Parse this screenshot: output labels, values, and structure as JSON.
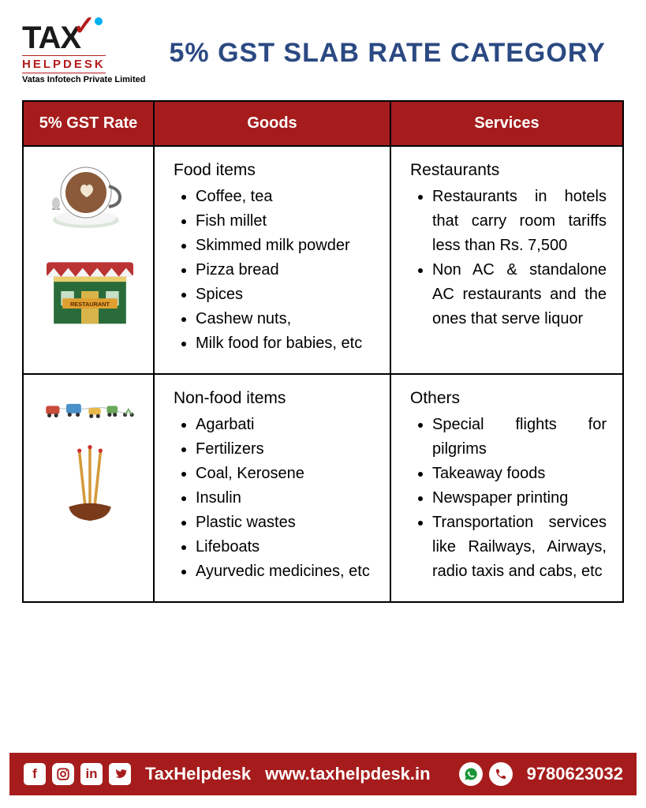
{
  "logo": {
    "tax": "TAX",
    "helpdesk": "HELPDESK",
    "subtitle": "Vatas Infotech Private Limited"
  },
  "title": "5% GST SLAB RATE CATEGORY",
  "table": {
    "headers": [
      "5% GST Rate",
      "Goods",
      "Services"
    ],
    "rows": [
      {
        "goods_title": "Food items",
        "goods_items": [
          "Coffee, tea",
          "Fish millet",
          "Skimmed milk powder",
          "Pizza bread",
          "Spices",
          "Cashew nuts,",
          "Milk food for babies, etc"
        ],
        "services_title": "Restaurants",
        "services_items": [
          "Restaurants in hotels that carry room tariffs less than Rs. 7,500",
          "Non AC & standalone AC restaurants and the ones that serve liquor"
        ]
      },
      {
        "goods_title": "Non-food items",
        "goods_items": [
          "Agarbati",
          "Fertilizers",
          "Coal, Kerosene",
          "Insulin",
          "Plastic wastes",
          "Lifeboats",
          "Ayurvedic medicines, etc"
        ],
        "services_title": "Others",
        "services_items": [
          "Special flights for pilgrims",
          "Takeaway foods",
          "Newspaper printing",
          "Transportation services like Railways, Airways, radio taxis and cabs, etc"
        ]
      }
    ]
  },
  "footer": {
    "handle": "TaxHelpdesk",
    "website": "www.taxhelpdesk.in",
    "phone": "9780623032"
  },
  "colors": {
    "header_bg": "#a61c1c",
    "title_color": "#2b4982"
  }
}
